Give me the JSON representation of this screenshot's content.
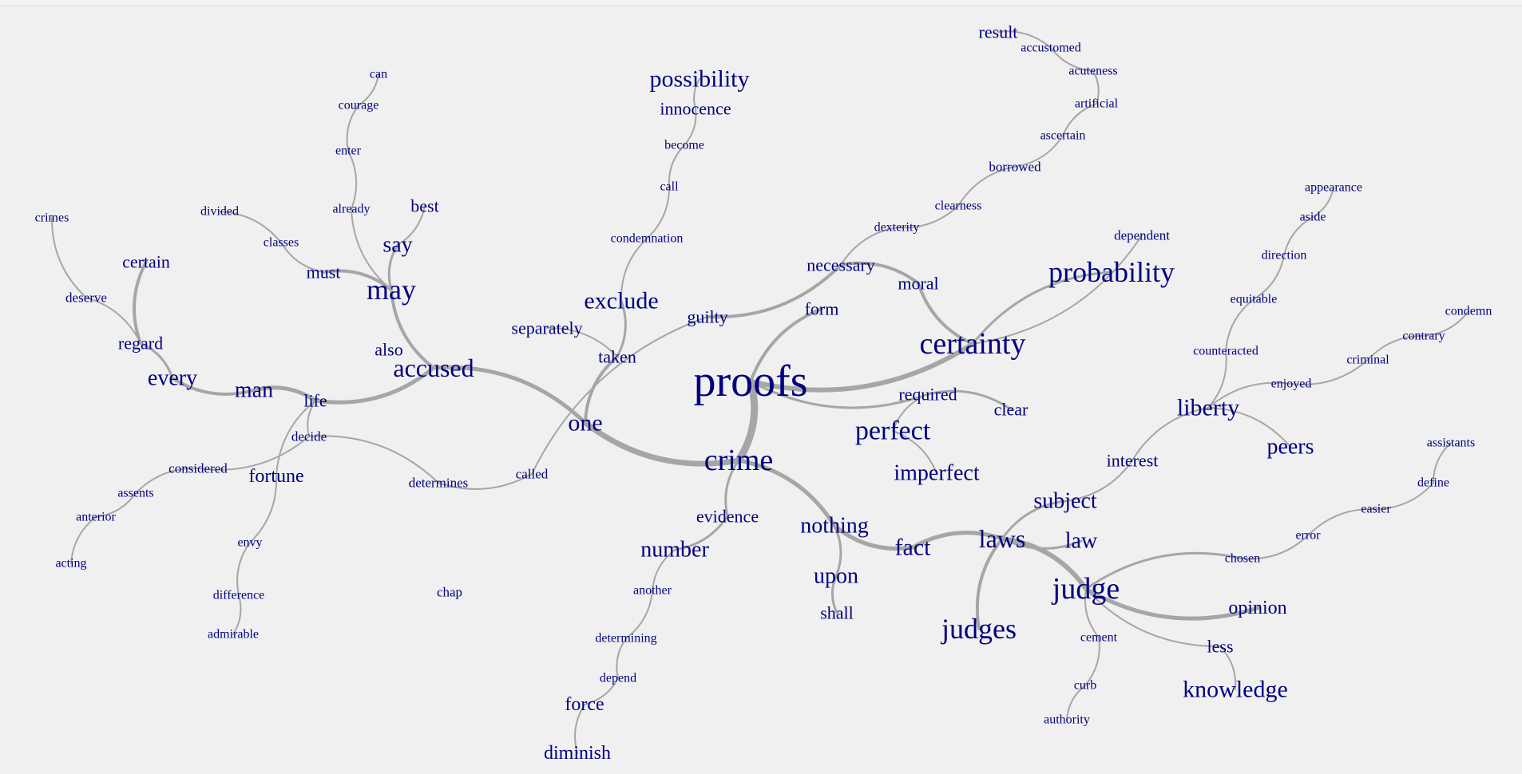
{
  "colors": {
    "background": "#f0f0f0",
    "word": "#000080",
    "branch": "#a6a6a6"
  },
  "words": [
    "proofs",
    "crime",
    "one",
    "certainty",
    "probability",
    "accused",
    "may",
    "judge",
    "laws",
    "fact",
    "nothing",
    "number",
    "evidence",
    "necessary",
    "moral",
    "form",
    "guilty",
    "taken",
    "exclude",
    "separately",
    "possibility",
    "innocence",
    "become",
    "call",
    "condemnation",
    "required",
    "clear",
    "perfect",
    "imperfect",
    "dependent",
    "dexterity",
    "clearness",
    "borrowed",
    "ascertain",
    "artificial",
    "acuteness",
    "accustomed",
    "result",
    "life",
    "man",
    "every",
    "regard",
    "certain",
    "deserve",
    "crimes",
    "also",
    "must",
    "classes",
    "divided",
    "say",
    "best",
    "already",
    "enter",
    "courage",
    "can",
    "decide",
    "determines",
    "called",
    "considered",
    "assents",
    "anterior",
    "acting",
    "fortune",
    "envy",
    "difference",
    "admirable",
    "chap",
    "upon",
    "shall",
    "another",
    "determining",
    "depend",
    "force",
    "diminish",
    "judges",
    "subject",
    "interest",
    "liberty",
    "peers",
    "enjoyed",
    "criminal",
    "contrary",
    "condemn",
    "counteracted",
    "equitable",
    "direction",
    "aside",
    "appearance",
    "law",
    "chosen",
    "error",
    "easier",
    "define",
    "assistants",
    "opinion",
    "less",
    "knowledge",
    "cement",
    "curb",
    "authority"
  ]
}
